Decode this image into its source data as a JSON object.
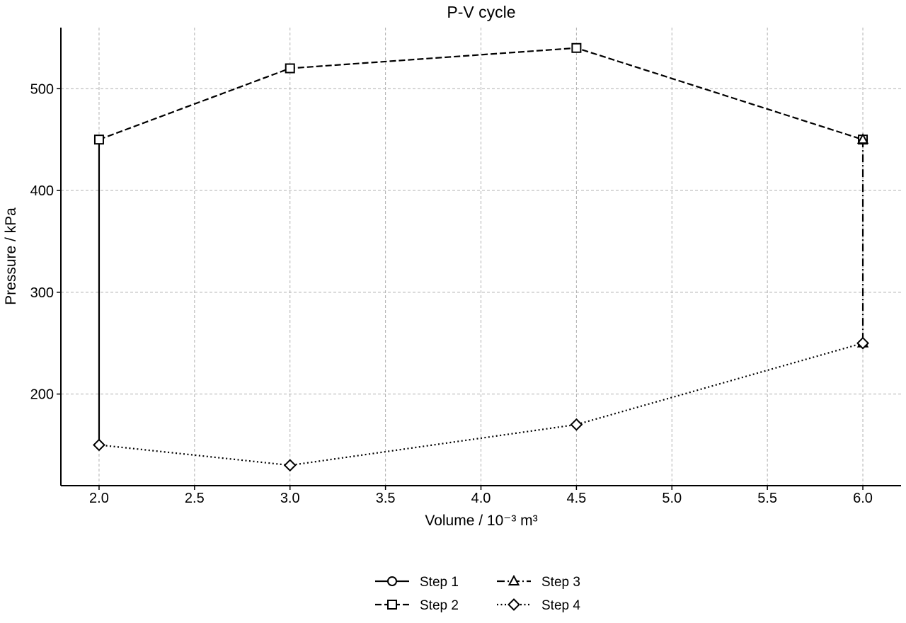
{
  "chart_data": {
    "type": "line",
    "title": "P-V cycle",
    "xlabel": "Volume / 10⁻³ m³",
    "ylabel": "Pressure / kPa",
    "xlim": [
      1.8,
      6.2
    ],
    "ylim": [
      110,
      560
    ],
    "xticks": [
      2.0,
      2.5,
      3.0,
      3.5,
      4.0,
      4.5,
      5.0,
      5.5,
      6.0
    ],
    "xtick_labels": [
      "2.0",
      "2.5",
      "3.0",
      "3.5",
      "4.0",
      "4.5",
      "5.0",
      "5.5",
      "6.0"
    ],
    "yticks": [
      200,
      300,
      400,
      500
    ],
    "ytick_labels": [
      "200",
      "300",
      "400",
      "500"
    ],
    "grid": true,
    "legend_position": "bottom-center",
    "series": [
      {
        "name": "Step 1",
        "x": [
          2.0,
          2.0
        ],
        "y": [
          150,
          450
        ],
        "marker": "circle",
        "line_style": "solid",
        "marker_on_points": false
      },
      {
        "name": "Step 2",
        "x": [
          2.0,
          3.0,
          4.5,
          6.0
        ],
        "y": [
          450,
          520,
          540,
          450
        ],
        "marker": "square",
        "line_style": "dashed",
        "marker_on_points": true
      },
      {
        "name": "Step 3",
        "x": [
          6.0,
          6.0
        ],
        "y": [
          450,
          250
        ],
        "marker": "triangle",
        "line_style": "dashdot",
        "marker_on_points": true
      },
      {
        "name": "Step 4",
        "x": [
          6.0,
          4.5,
          3.0,
          2.0
        ],
        "y": [
          250,
          170,
          130,
          150
        ],
        "marker": "diamond",
        "line_style": "dotted",
        "marker_on_points": true
      }
    ],
    "colors": {
      "line": "#000000",
      "grid": "#b0b0b0",
      "background": "#ffffff"
    }
  }
}
